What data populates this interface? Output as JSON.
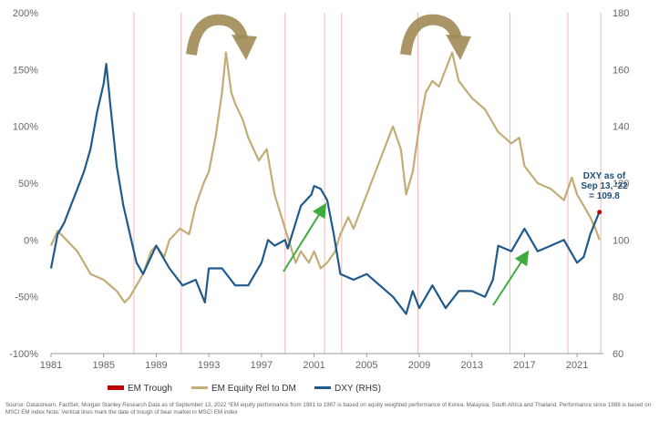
{
  "chart_data": {
    "type": "line",
    "xlim": [
      1981,
      2023
    ],
    "x_ticks": [
      "1981",
      "1985",
      "1989",
      "1993",
      "1997",
      "2001",
      "2005",
      "2009",
      "2013",
      "2017",
      "2021"
    ],
    "left_axis": {
      "ylim": [
        -100,
        200
      ],
      "ticks": [
        "-100%",
        "-50%",
        "0%",
        "50%",
        "100%",
        "150%",
        "200%"
      ]
    },
    "right_axis": {
      "ylim": [
        60,
        180
      ],
      "ticks": [
        "60",
        "80",
        "100",
        "120",
        "140",
        "160",
        "180"
      ]
    },
    "trough_years": [
      1987.3,
      1990.9,
      1998.8,
      2001.8,
      2003.1,
      2008.9,
      2015.9,
      2020.3,
      2022.8
    ],
    "series": [
      {
        "name": "EM Equity Rel to DM",
        "axis": "left",
        "color": "#c2ad76",
        "x": [
          1981,
          1981.5,
          1982,
          1983,
          1984,
          1985,
          1986,
          1986.6,
          1987,
          1987.5,
          1988,
          1988.6,
          1989,
          1989.6,
          1990,
          1990.8,
          1991.5,
          1992,
          1992.6,
          1993,
          1993.5,
          1994,
          1994.3,
          1994.7,
          1995,
          1995.6,
          1996,
          1996.8,
          1997.4,
          1998,
          1998.8,
          1999.6,
          2000,
          2000.6,
          2001,
          2001.5,
          2002,
          2002.6,
          2003,
          2003.6,
          2004,
          2005,
          2006,
          2007,
          2007.6,
          2008,
          2008.5,
          2009,
          2009.5,
          2010,
          2010.5,
          2011,
          2011.5,
          2012,
          2013,
          2014,
          2015,
          2016,
          2016.6,
          2017,
          2018,
          2019,
          2020,
          2020.6,
          2021,
          2021.5,
          2022,
          2022.4,
          2022.7
        ],
        "values": [
          -5,
          8,
          2,
          -10,
          -30,
          -35,
          -45,
          -55,
          -50,
          -40,
          -30,
          -10,
          -5,
          -15,
          0,
          10,
          5,
          30,
          50,
          60,
          90,
          130,
          165,
          130,
          120,
          105,
          90,
          70,
          80,
          40,
          10,
          -20,
          -10,
          -20,
          -10,
          -25,
          -20,
          -10,
          5,
          20,
          10,
          40,
          70,
          100,
          80,
          40,
          60,
          100,
          130,
          140,
          135,
          150,
          165,
          140,
          125,
          115,
          95,
          85,
          90,
          65,
          50,
          45,
          35,
          55,
          40,
          30,
          20,
          10,
          0
        ]
      },
      {
        "name": "DXY (RHS)",
        "axis": "right",
        "color": "#1f5a8c",
        "x": [
          1981,
          1981.5,
          1982,
          1982.5,
          1983,
          1983.5,
          1984,
          1984.5,
          1985,
          1985.2,
          1985.5,
          1986,
          1986.5,
          1987,
          1987.5,
          1988,
          1989,
          1990,
          1991,
          1992,
          1992.7,
          1993,
          1994,
          1995,
          1996,
          1997,
          1997.5,
          1998,
          1998.8,
          1999,
          2000,
          2000.8,
          2001,
          2001.5,
          2002,
          2002.5,
          2003,
          2004,
          2005,
          2006,
          2007,
          2008,
          2008.5,
          2009,
          2009.5,
          2010,
          2011,
          2012,
          2013,
          2014,
          2014.6,
          2015,
          2016,
          2017,
          2018,
          2019,
          2020,
          2021,
          2021.5,
          2022,
          2022.7
        ],
        "values": [
          90,
          102,
          106,
          112,
          118,
          124,
          132,
          145,
          155,
          162,
          148,
          126,
          112,
          102,
          92,
          88,
          98,
          90,
          84,
          86,
          78,
          90,
          90,
          84,
          84,
          92,
          100,
          98,
          100,
          97,
          112,
          116,
          119,
          118,
          114,
          102,
          88,
          86,
          88,
          84,
          80,
          74,
          82,
          76,
          80,
          84,
          76,
          82,
          82,
          80,
          86,
          98,
          96,
          104,
          96,
          98,
          100,
          92,
          94,
          102,
          110
        ]
      }
    ],
    "annotation": {
      "text_lines": [
        "DXY as of",
        "Sep 13, '22",
        "= 109.8"
      ],
      "x": 2022.7,
      "value": 109.8
    },
    "legend": [
      {
        "label": "EM Trough",
        "color": "#c00000",
        "type": "bar"
      },
      {
        "label": "EM Equity Rel to DM",
        "color": "#c2ad76",
        "type": "line"
      },
      {
        "label": "DXY (RHS)",
        "color": "#1f5a8c",
        "type": "line"
      }
    ],
    "legend_position": "bottom",
    "grid": false,
    "source": "Source: Datastream, FactSet, Morgan Stanley Research Data as of September 13, 2022 *EM equity performance from 1981 to 1987 is based on equity weighted performance of Korea, Malaysia, South Africa and Thailand. Performance since 1988 is based on MSCI EM index Note: Vertical lines mark the date of trough of bear market in MSCI EM index"
  }
}
